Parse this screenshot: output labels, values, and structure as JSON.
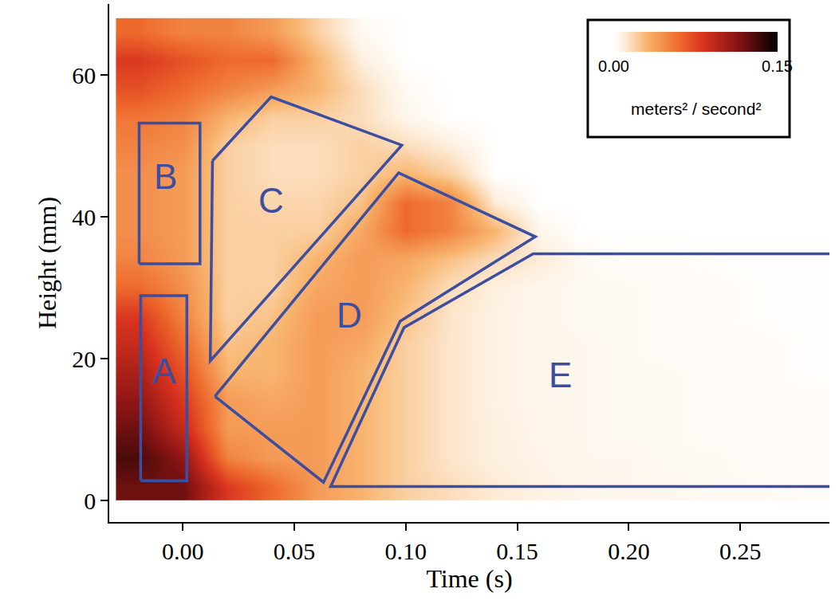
{
  "chart_data": {
    "type": "heatmap",
    "x_label": "Time (s)",
    "y_label": "Height (mm)",
    "xlim": [
      -0.033,
      0.29
    ],
    "xticks": [
      {
        "value": 0,
        "label": "0.00"
      },
      {
        "value": 0.05,
        "label": "0.05"
      },
      {
        "value": 0.1,
        "label": "0.10"
      },
      {
        "value": 0.15,
        "label": "0.15"
      },
      {
        "value": 0.2,
        "label": "0.20"
      },
      {
        "value": 0.25,
        "label": "0.25"
      }
    ],
    "ylim": [
      -3,
      70
    ],
    "yticks": [
      0,
      20,
      40,
      60
    ],
    "grid": false,
    "x": [
      -0.02,
      0,
      0.02,
      0.04,
      0.06,
      0.08,
      0.1,
      0.12,
      0.14,
      0.16,
      0.18,
      0.2,
      0.22,
      0.24,
      0.26,
      0.28
    ],
    "y": [
      2,
      6,
      10,
      14,
      18,
      22,
      26,
      30,
      34,
      38,
      42,
      46,
      50,
      54,
      58,
      62,
      66
    ],
    "z": [
      [
        0.12,
        0.12,
        0.08,
        0.06,
        0.04,
        0.03,
        0.02,
        0.015,
        0.01,
        0.007,
        0.005,
        0.004,
        0.004,
        0.003,
        0.003,
        0.002
      ],
      [
        0.13,
        0.11,
        0.05,
        0.04,
        0.04,
        0.03,
        0.02,
        0.012,
        0.008,
        0.006,
        0.004,
        0.004,
        0.003,
        0.003,
        0.002,
        0.002
      ],
      [
        0.12,
        0.09,
        0.04,
        0.04,
        0.04,
        0.03,
        0.02,
        0.012,
        0.008,
        0.005,
        0.004,
        0.003,
        0.003,
        0.002,
        0.002,
        0.002
      ],
      [
        0.11,
        0.08,
        0.04,
        0.035,
        0.04,
        0.03,
        0.02,
        0.012,
        0.007,
        0.005,
        0.004,
        0.003,
        0.003,
        0.002,
        0.002,
        0.002
      ],
      [
        0.1,
        0.07,
        0.03,
        0.03,
        0.04,
        0.03,
        0.02,
        0.012,
        0.007,
        0.005,
        0.004,
        0.003,
        0.003,
        0.002,
        0.002,
        0.001
      ],
      [
        0.09,
        0.06,
        0.025,
        0.03,
        0.04,
        0.035,
        0.02,
        0.012,
        0.007,
        0.005,
        0.004,
        0.003,
        0.002,
        0.002,
        0.002,
        0.001
      ],
      [
        0.08,
        0.05,
        0.02,
        0.025,
        0.04,
        0.04,
        0.025,
        0.012,
        0.007,
        0.005,
        0.003,
        0.003,
        0.002,
        0.002,
        0.001,
        0.001
      ],
      [
        0.06,
        0.045,
        0.02,
        0.02,
        0.035,
        0.04,
        0.03,
        0.015,
        0.008,
        0.005,
        0.003,
        0.003,
        0.002,
        0.002,
        0.001,
        0.001
      ],
      [
        0.05,
        0.04,
        0.02,
        0.02,
        0.03,
        0.04,
        0.035,
        0.025,
        0.015,
        0.01,
        0.003,
        0.002,
        0.002,
        0.001,
        0.001,
        0.001
      ],
      [
        0.045,
        0.04,
        0.02,
        0.02,
        0.02,
        0.035,
        0.06,
        0.05,
        0.03,
        0.005,
        0,
        0,
        0,
        0,
        0,
        0
      ],
      [
        0.045,
        0.04,
        0.02,
        0.018,
        0.018,
        0.025,
        0.06,
        0.05,
        0.01,
        0,
        0,
        0,
        0,
        0,
        0,
        0
      ],
      [
        0.045,
        0.04,
        0.02,
        0.015,
        0.015,
        0.02,
        0.03,
        0.02,
        0,
        0,
        0,
        0,
        0,
        0,
        0,
        0
      ],
      [
        0.05,
        0.045,
        0.02,
        0.015,
        0.015,
        0.02,
        0.015,
        0.008,
        0,
        0,
        0,
        0,
        0,
        0,
        0,
        0
      ],
      [
        0.055,
        0.05,
        0.03,
        0.02,
        0.02,
        0.015,
        0.005,
        0,
        0,
        0,
        0,
        0,
        0,
        0,
        0,
        0
      ],
      [
        0.07,
        0.06,
        0.05,
        0.04,
        0.03,
        0.015,
        0.003,
        0,
        0,
        0,
        0,
        0,
        0,
        0,
        0,
        0
      ],
      [
        0.08,
        0.07,
        0.06,
        0.06,
        0.03,
        0.008,
        0,
        0,
        0,
        0,
        0,
        0,
        0,
        0,
        0,
        0
      ],
      [
        0.06,
        0.05,
        0.05,
        0.04,
        0.02,
        0.003,
        0,
        0,
        0,
        0,
        0,
        0,
        0,
        0,
        0,
        0
      ]
    ],
    "colorbar": {
      "range": [
        0,
        0.15
      ],
      "ticks": [
        {
          "value": 0,
          "label": "0.00"
        },
        {
          "value": 0.15,
          "label": "0.15"
        }
      ],
      "title": "meters² / second²"
    },
    "regions": [
      {
        "label": "A",
        "label_at": [
          -0.0084,
          18.3
        ],
        "points": [
          [
            -0.0189,
            2.8
          ],
          [
            -0.0189,
            28.9
          ],
          [
            0.0018,
            28.9
          ],
          [
            0.0018,
            2.8
          ],
          [
            -0.0189,
            2.8
          ]
        ]
      },
      {
        "label": "B",
        "label_at": [
          -0.0077,
          45.7
        ],
        "points": [
          [
            -0.0196,
            33.4
          ],
          [
            -0.0196,
            53.2
          ],
          [
            0.0077,
            53.2
          ],
          [
            0.0077,
            33.4
          ],
          [
            -0.0196,
            33.4
          ]
        ]
      },
      {
        "label": "C",
        "label_at": [
          0.0396,
          42.3
        ],
        "points": [
          [
            0.0133,
            47.9
          ],
          [
            0.0396,
            56.9
          ],
          [
            0.0982,
            50.1
          ],
          [
            0.0123,
            19.7
          ],
          [
            0.0133,
            47.9
          ]
        ]
      },
      {
        "label": "D",
        "label_at": [
          0.0747,
          26.1
        ],
        "points": [
          [
            0.0144,
            14.7
          ],
          [
            0.0968,
            46.2
          ],
          [
            0.1581,
            37.2
          ],
          [
            0.0975,
            25.3
          ],
          [
            0.0631,
            2.6
          ],
          [
            0.0144,
            14.7
          ]
        ]
      },
      {
        "label": "E",
        "label_at": [
          0.1694,
          17.7
        ],
        "points": [
          [
            0.29,
            34.8
          ],
          [
            0.1571,
            34.8
          ],
          [
            0.0992,
            24.4
          ],
          [
            0.0663,
            2.0
          ],
          [
            0.29,
            2.0
          ]
        ]
      }
    ]
  }
}
